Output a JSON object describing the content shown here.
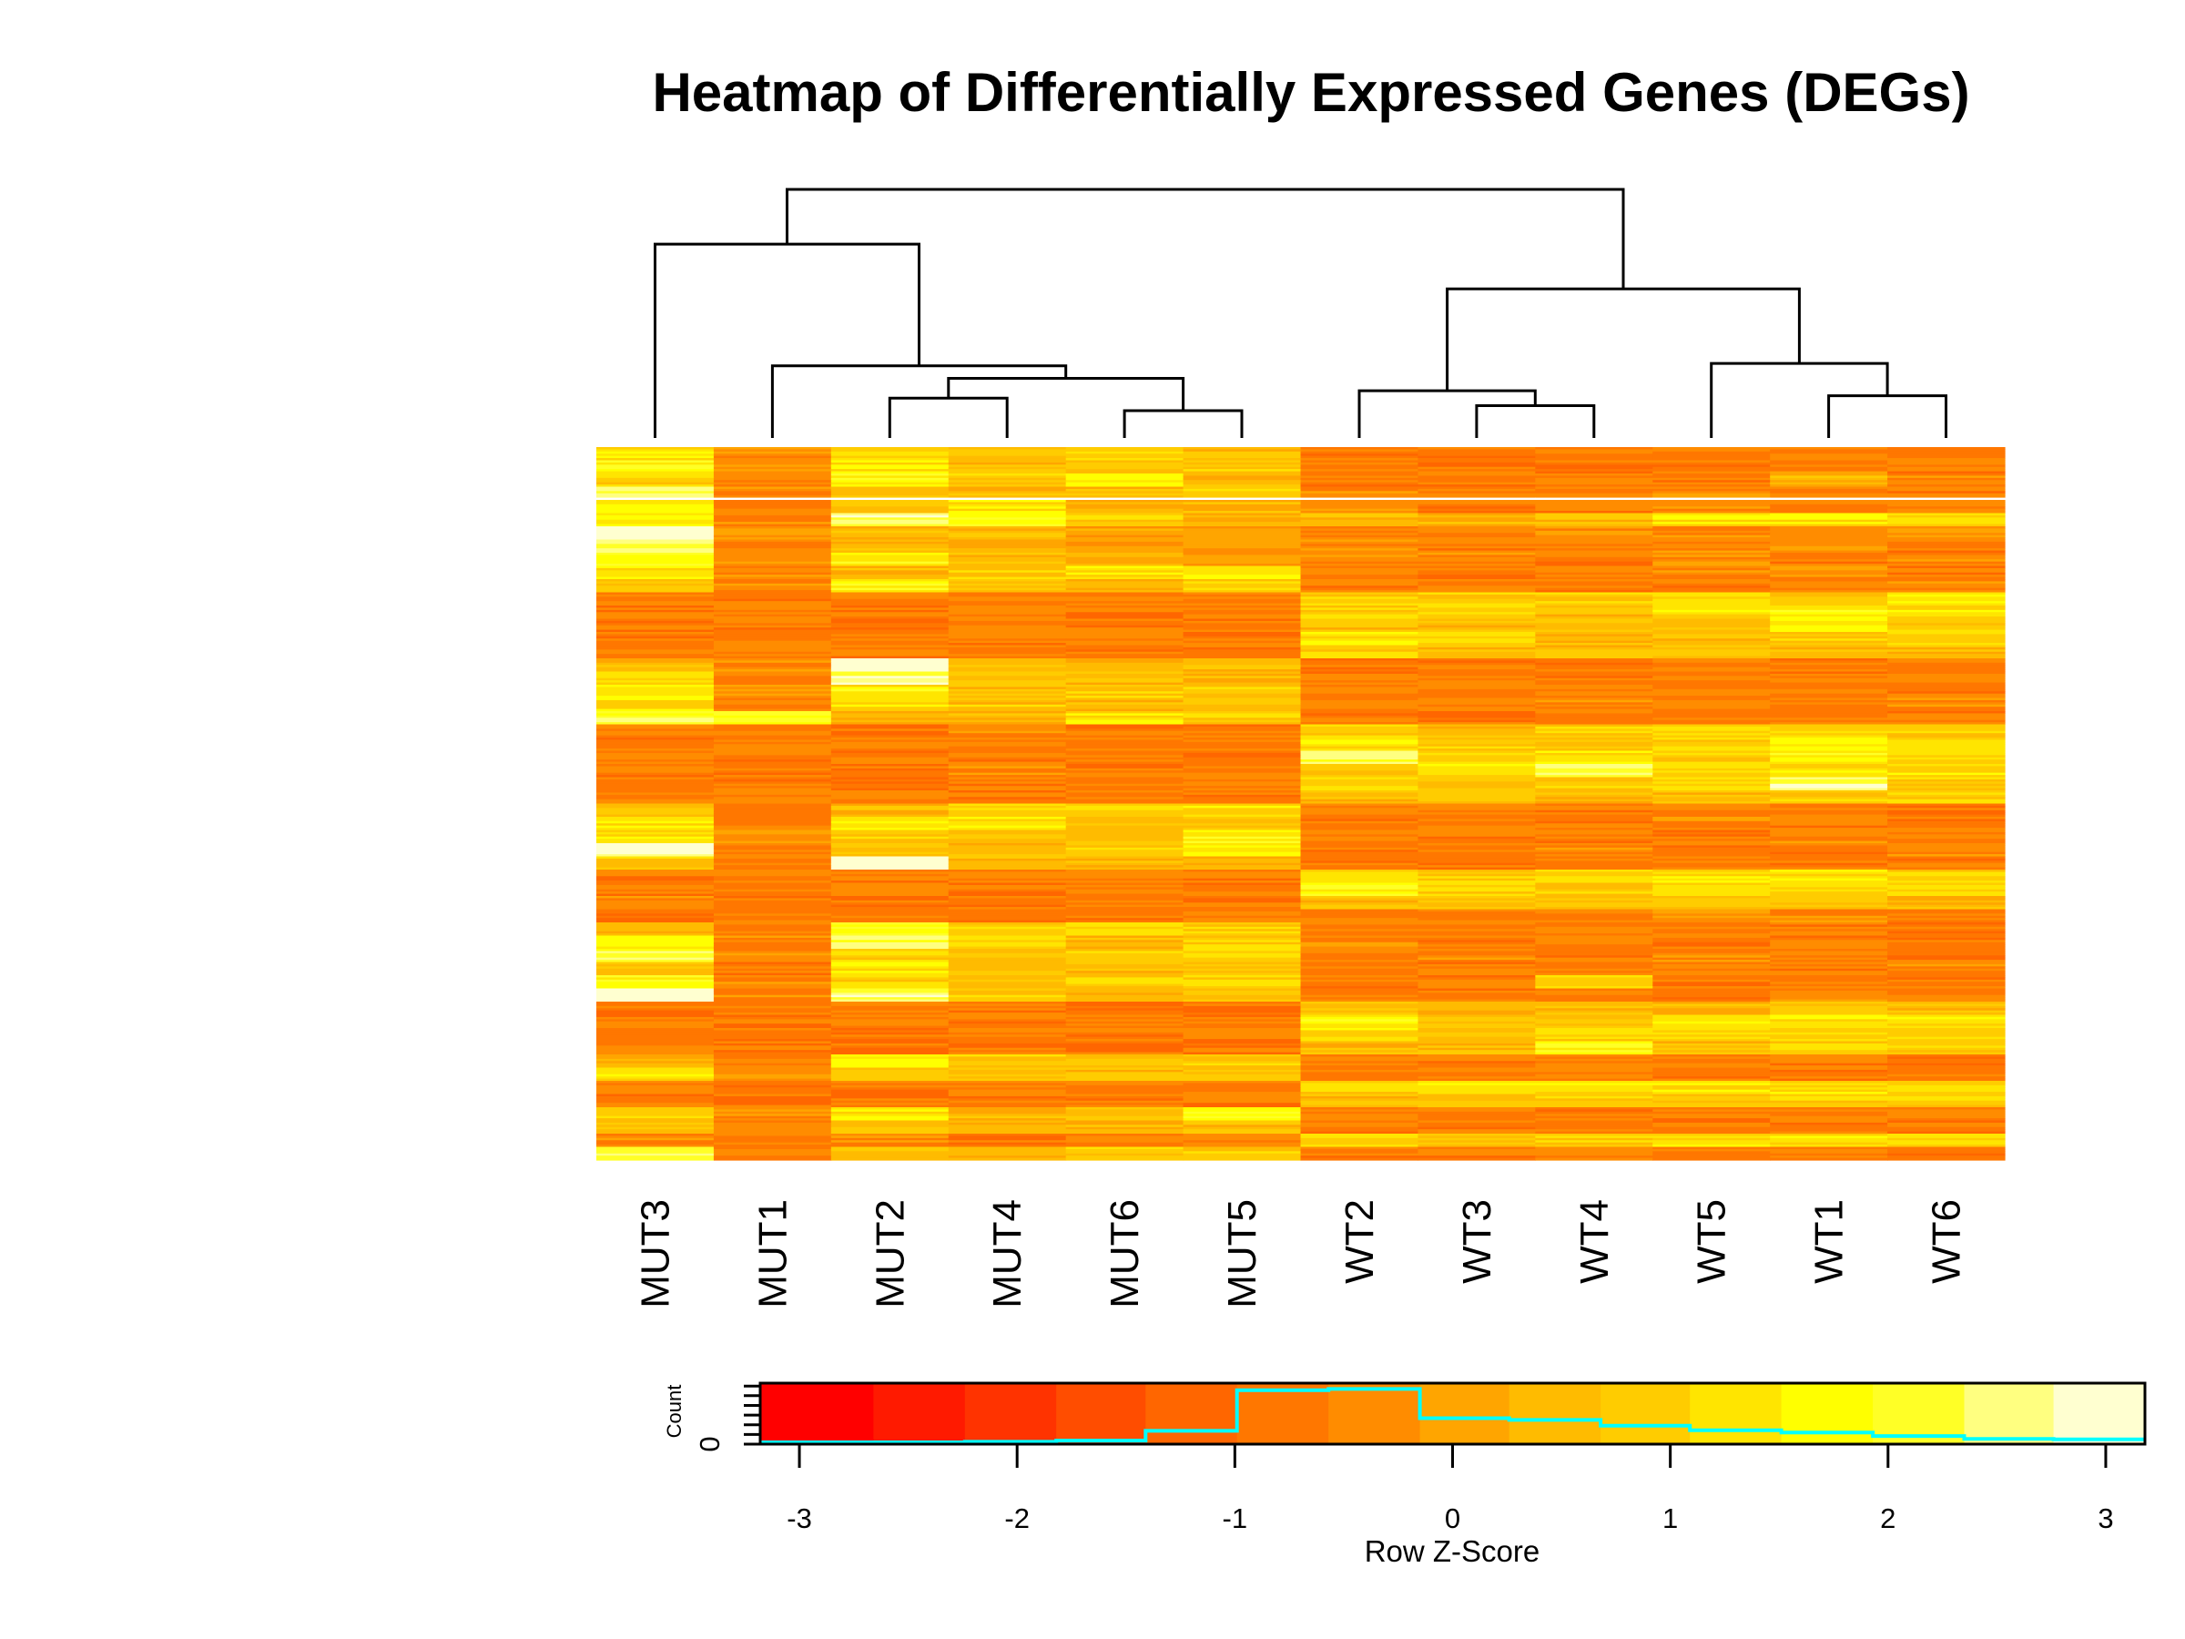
{
  "chart_data": {
    "type": "heatmap",
    "title": "Heatmap of Differentially Expressed Genes (DEGs)",
    "xlabel": "",
    "ylabel": "",
    "columns": [
      "MUT3",
      "MUT1",
      "MUT2",
      "MUT4",
      "MUT6",
      "MUT5",
      "WT2",
      "WT3",
      "WT4",
      "WT5",
      "WT1",
      "WT6"
    ],
    "row_labels_shown": false,
    "column_dendrogram": {
      "merges": [
        {
          "left": "MUT2",
          "right": "MUT4",
          "height": 0.16
        },
        {
          "left": "MUT6",
          "right": "MUT5",
          "height": 0.11
        },
        {
          "left": "MUT2+MUT4",
          "right": "MUT6+MUT5",
          "height": 0.24
        },
        {
          "left": "MUT1",
          "right": "MUT2+MUT4+MUT6+MUT5",
          "height": 0.29
        },
        {
          "left": "MUT3",
          "right": "MUT1+MUT2+MUT4+MUT6+MUT5",
          "height": 0.78
        },
        {
          "left": "WT3",
          "right": "WT4",
          "height": 0.13
        },
        {
          "left": "WT2",
          "right": "WT3+WT4",
          "height": 0.19
        },
        {
          "left": "WT1",
          "right": "WT6",
          "height": 0.17
        },
        {
          "left": "WT5",
          "right": "WT1+WT6",
          "height": 0.3
        },
        {
          "left": "WT2+WT3+WT4",
          "right": "WT5+WT1+WT6",
          "height": 0.6
        },
        {
          "left": "MUT",
          "right": "WT",
          "height": 1.0
        }
      ]
    },
    "z_scores_by_band": [
      [
        1.2,
        -0.3,
        1.0,
        0.7,
        0.8,
        0.6,
        -0.6,
        -0.7,
        -0.8,
        -0.6,
        -0.4,
        -0.7
      ],
      [
        1.8,
        -0.4,
        1.4,
        0.5,
        0.6,
        0.9,
        -0.5,
        -0.8,
        -0.7,
        -0.7,
        -0.5,
        -0.6
      ],
      [
        0.9,
        -0.5,
        1.6,
        0.9,
        1.4,
        0.4,
        -0.6,
        -0.7,
        -0.5,
        -0.6,
        0.3,
        -0.5
      ],
      [
        2.6,
        -0.4,
        0.7,
        0.4,
        0.5,
        0.8,
        -0.5,
        -0.6,
        -0.6,
        -0.4,
        -0.5,
        -0.6
      ],
      [
        1.5,
        -0.6,
        0.6,
        1.3,
        0.3,
        0.5,
        -0.4,
        -0.7,
        -0.6,
        -0.5,
        -0.6,
        -0.5
      ],
      [
        1.4,
        -0.3,
        2.4,
        1.8,
        0.8,
        0.4,
        0.5,
        0.3,
        0.6,
        1.2,
        1.4,
        1.3
      ],
      [
        3.0,
        -0.2,
        0.4,
        0.5,
        0.0,
        0.2,
        -0.4,
        -0.5,
        -0.3,
        -0.4,
        -0.5,
        -0.3
      ],
      [
        2.4,
        -0.4,
        0.5,
        0.3,
        -0.2,
        -0.1,
        -0.5,
        -0.6,
        -0.4,
        -0.5,
        -0.3,
        -0.6
      ],
      [
        1.8,
        -0.3,
        1.5,
        0.6,
        0.3,
        -0.1,
        -0.5,
        -0.5,
        -0.6,
        -0.4,
        -0.7,
        -0.5
      ],
      [
        1.2,
        -0.4,
        0.5,
        0.9,
        1.3,
        1.5,
        -0.6,
        -0.7,
        -0.5,
        -0.5,
        -0.4,
        -0.6
      ],
      [
        0.8,
        -0.5,
        1.6,
        0.7,
        0.4,
        0.9,
        -0.6,
        -0.5,
        -0.6,
        -0.6,
        -0.6,
        -0.5
      ],
      [
        -0.6,
        -0.6,
        -0.4,
        -0.5,
        -0.6,
        -0.6,
        1.0,
        0.8,
        0.9,
        1.1,
        0.9,
        1.3
      ],
      [
        -0.7,
        -0.5,
        -0.6,
        -0.5,
        -0.7,
        -0.6,
        0.8,
        1.1,
        0.7,
        1.3,
        1.6,
        1.4
      ],
      [
        -0.8,
        -0.6,
        -0.9,
        -0.6,
        -0.7,
        -0.8,
        0.6,
        0.5,
        0.7,
        0.8,
        1.4,
        0.9
      ],
      [
        -0.6,
        -0.7,
        -0.7,
        -0.6,
        -0.6,
        -0.7,
        1.3,
        0.9,
        0.7,
        0.6,
        0.9,
        1.1
      ],
      [
        -0.5,
        -0.5,
        -0.6,
        -0.7,
        -0.8,
        -0.7,
        0.9,
        0.6,
        0.4,
        0.8,
        0.5,
        0.4
      ],
      [
        0.3,
        -0.4,
        3.0,
        0.4,
        0.2,
        0.5,
        -0.7,
        -0.7,
        -0.8,
        -0.6,
        -0.7,
        -0.6
      ],
      [
        0.9,
        -0.5,
        2.6,
        0.6,
        0.5,
        0.3,
        -0.6,
        -0.6,
        -0.7,
        -0.7,
        -0.6,
        -0.5
      ],
      [
        1.6,
        -0.3,
        1.5,
        0.5,
        0.9,
        0.8,
        -0.5,
        -0.5,
        -0.6,
        -0.5,
        -0.5,
        -0.6
      ],
      [
        1.3,
        -0.5,
        1.2,
        0.7,
        0.4,
        0.6,
        -0.6,
        -0.6,
        -0.5,
        -0.7,
        -0.6,
        -0.5
      ],
      [
        2.2,
        1.9,
        0.4,
        0.3,
        1.4,
        0.9,
        -0.7,
        -0.8,
        -0.6,
        -0.6,
        -0.7,
        -0.7
      ],
      [
        -0.7,
        -0.6,
        -0.7,
        -0.5,
        -0.7,
        -0.8,
        1.0,
        0.5,
        0.9,
        1.1,
        1.2,
        0.8
      ],
      [
        -0.8,
        -0.7,
        -0.6,
        -0.6,
        -0.8,
        -0.7,
        1.2,
        0.8,
        0.6,
        0.9,
        1.8,
        1.1
      ],
      [
        -0.6,
        -0.6,
        -0.7,
        -0.7,
        -0.6,
        -0.9,
        2.2,
        1.0,
        1.2,
        0.8,
        1.6,
        0.9
      ],
      [
        -0.7,
        -0.8,
        -0.8,
        -0.5,
        -0.7,
        -0.7,
        0.7,
        1.2,
        2.3,
        1.0,
        1.4,
        1.3
      ],
      [
        -0.8,
        -0.6,
        -0.9,
        -0.6,
        -0.7,
        -0.6,
        0.9,
        0.6,
        0.8,
        1.3,
        2.4,
        0.7
      ],
      [
        -0.5,
        -0.5,
        -0.5,
        -0.7,
        -0.6,
        -0.7,
        0.4,
        0.7,
        0.5,
        0.6,
        0.8,
        0.9
      ],
      [
        0.6,
        -0.4,
        0.5,
        1.0,
        1.2,
        1.1,
        -0.6,
        -0.6,
        -0.7,
        -0.6,
        -0.6,
        -0.7
      ],
      [
        1.3,
        -0.5,
        1.5,
        1.4,
        0.8,
        0.7,
        -0.7,
        -0.5,
        -0.8,
        -0.5,
        -0.7,
        -0.6
      ],
      [
        1.1,
        -0.3,
        0.8,
        0.6,
        0.7,
        1.6,
        -0.5,
        -0.7,
        -0.6,
        -0.7,
        -0.5,
        -0.6
      ],
      [
        2.8,
        -0.4,
        0.6,
        0.5,
        0.9,
        1.3,
        -0.6,
        -0.6,
        -0.5,
        -0.6,
        -0.6,
        -0.5
      ],
      [
        0.7,
        -0.5,
        3.0,
        0.4,
        0.5,
        0.4,
        -0.7,
        -0.8,
        -0.6,
        -0.7,
        -0.8,
        -0.7
      ],
      [
        -0.6,
        -0.7,
        -0.6,
        -0.6,
        -0.6,
        -0.7,
        1.2,
        0.8,
        0.9,
        1.3,
        1.4,
        0.7
      ],
      [
        -0.7,
        -0.8,
        -0.5,
        -0.7,
        -0.7,
        -0.8,
        1.8,
        1.1,
        0.8,
        1.0,
        1.1,
        1.0
      ],
      [
        -0.5,
        -0.6,
        -0.7,
        -0.6,
        -0.6,
        -0.7,
        0.6,
        0.5,
        0.6,
        0.8,
        0.7,
        0.5
      ],
      [
        -0.7,
        -0.5,
        -0.6,
        -0.7,
        -0.8,
        -0.6,
        -0.5,
        -0.6,
        -0.5,
        -0.4,
        -0.5,
        -0.6
      ],
      [
        0.4,
        -0.4,
        1.8,
        0.9,
        0.9,
        0.8,
        -0.6,
        -0.6,
        -0.7,
        -0.6,
        -0.6,
        -0.7
      ],
      [
        1.5,
        -0.5,
        2.3,
        1.2,
        0.5,
        1.0,
        -0.5,
        -0.7,
        -0.6,
        -0.7,
        -0.7,
        -0.6
      ],
      [
        2.2,
        -0.3,
        1.0,
        0.6,
        0.8,
        1.2,
        -0.6,
        -0.5,
        -0.8,
        -0.5,
        -0.5,
        -0.7
      ],
      [
        0.8,
        -0.6,
        1.4,
        0.7,
        0.6,
        0.5,
        -0.7,
        -0.6,
        -0.5,
        -0.6,
        -0.6,
        -0.5
      ],
      [
        1.9,
        -0.4,
        0.9,
        0.5,
        1.0,
        0.9,
        -0.6,
        -0.7,
        1.0,
        -0.7,
        -0.7,
        -0.6
      ],
      [
        3.0,
        -0.5,
        2.5,
        0.8,
        0.3,
        0.6,
        -0.5,
        -0.6,
        -0.6,
        -0.6,
        -0.5,
        -0.6
      ],
      [
        -0.8,
        -0.7,
        -0.6,
        -0.6,
        -0.8,
        -0.9,
        0.7,
        0.5,
        0.6,
        0.4,
        0.8,
        0.6
      ],
      [
        -0.6,
        -0.6,
        -0.7,
        -0.7,
        -0.6,
        -0.7,
        1.6,
        0.9,
        0.7,
        1.2,
        1.5,
        1.3
      ],
      [
        -0.7,
        -0.8,
        -0.8,
        -0.6,
        -0.7,
        -0.6,
        1.2,
        0.6,
        1.0,
        1.1,
        1.2,
        1.0
      ],
      [
        -0.9,
        -0.7,
        -0.9,
        -0.7,
        -0.8,
        -0.8,
        0.5,
        0.4,
        1.8,
        0.6,
        0.9,
        0.8
      ],
      [
        0.3,
        -0.5,
        1.7,
        0.7,
        1.0,
        0.8,
        -0.6,
        -0.7,
        -0.6,
        -0.6,
        -0.6,
        -0.7
      ],
      [
        1.3,
        -0.4,
        0.9,
        0.6,
        0.6,
        0.5,
        -0.7,
        -0.6,
        -0.5,
        -0.7,
        -0.7,
        -0.6
      ],
      [
        -0.6,
        -0.8,
        -0.7,
        -0.5,
        -0.6,
        -0.7,
        0.9,
        1.1,
        1.2,
        1.4,
        1.3,
        1.0
      ],
      [
        -0.8,
        -0.7,
        -0.8,
        -0.7,
        -0.7,
        -0.6,
        0.6,
        0.8,
        0.7,
        0.9,
        1.0,
        0.7
      ],
      [
        1.0,
        -0.5,
        1.3,
        0.5,
        0.8,
        1.9,
        -0.6,
        -0.6,
        -0.7,
        -0.6,
        -0.6,
        -0.6
      ],
      [
        0.6,
        -0.4,
        0.7,
        0.4,
        0.5,
        0.6,
        -0.7,
        -0.7,
        -0.6,
        -0.7,
        -0.7,
        -0.7
      ],
      [
        -0.5,
        -0.6,
        -0.5,
        -0.7,
        -0.6,
        -0.6,
        1.0,
        0.6,
        0.9,
        1.2,
        1.1,
        1.3
      ],
      [
        2.4,
        -0.5,
        0.5,
        0.4,
        0.7,
        0.9,
        -0.6,
        -0.7,
        -0.5,
        -0.6,
        -0.6,
        -0.6
      ]
    ],
    "missing_band_index": 3,
    "color_key": {
      "title": "Row Z-Score",
      "ylabel": "Count",
      "y_tick_label": "0",
      "x_ticks": [
        -3,
        -2,
        -1,
        0,
        1,
        2,
        3
      ],
      "xlim": [
        -3.18,
        3.18
      ],
      "breaks": [
        -3.18,
        -2.66,
        -2.24,
        -1.82,
        -1.41,
        -0.99,
        -0.57,
        -0.15,
        0.26,
        0.68,
        1.09,
        1.51,
        1.93,
        2.35,
        2.76,
        3.18
      ],
      "colors": [
        "#FF0000",
        "#FF1A00",
        "#FF3300",
        "#FF4D00",
        "#FF6600",
        "#FF7700",
        "#FF8C00",
        "#FFA500",
        "#FFBB00",
        "#FFCC00",
        "#FFE500",
        "#FFFF00",
        "#FFFF26",
        "#FFFF80",
        "#FFFFD0"
      ],
      "histogram_relative_counts": [
        0.0,
        0.0,
        0.01,
        0.03,
        0.2,
        0.91,
        0.93,
        0.42,
        0.39,
        0.29,
        0.21,
        0.17,
        0.11,
        0.06,
        0.05
      ],
      "histogram_color": "#00FFFF"
    }
  }
}
